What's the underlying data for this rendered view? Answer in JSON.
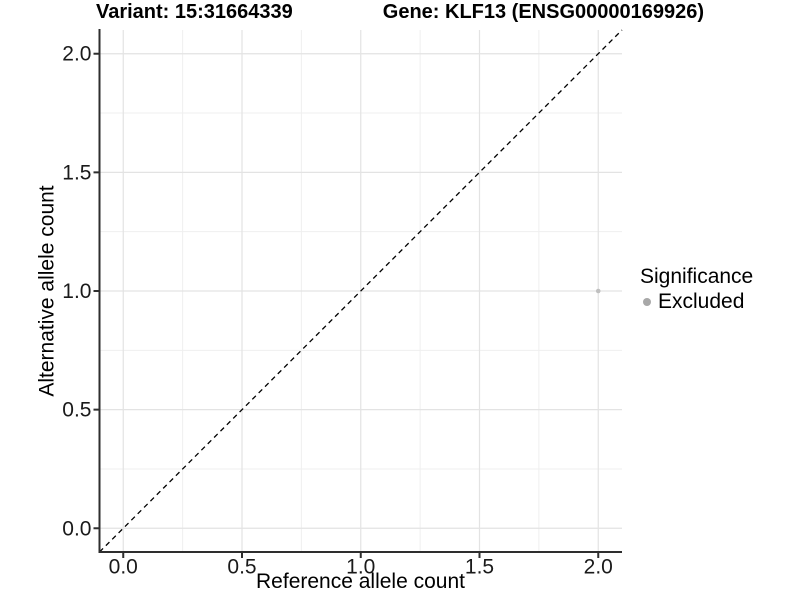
{
  "chart_data": {
    "type": "scatter",
    "titles": {
      "left": "Variant: 15:31664339",
      "right": "Gene: KLF13 (ENSG00000169926)"
    },
    "xlabel": "Reference allele count",
    "ylabel": "Alternative allele count",
    "xlim": [
      -0.1,
      2.1
    ],
    "ylim": [
      -0.1,
      2.1
    ],
    "x_ticks": {
      "values": [
        0,
        0.5,
        1,
        1.5,
        2
      ],
      "labels": [
        "0.0",
        "0.5",
        "1.0",
        "1.5",
        "2.0"
      ]
    },
    "y_ticks": {
      "values": [
        0,
        0.5,
        1,
        1.5,
        2
      ],
      "labels": [
        "0.0",
        "0.5",
        "1.0",
        "1.5",
        "2.0"
      ]
    },
    "minor_tick_values": [
      0.25,
      0.75,
      1.25,
      1.75
    ],
    "grid": {
      "major": true,
      "minor": true
    },
    "identity_line": {
      "slope": 1,
      "intercept": 0,
      "style": "dashed",
      "color": "#000000"
    },
    "series": [
      {
        "name": "Excluded",
        "marker": "circle",
        "marker_radius": 2.3,
        "color": "#c0c0c0",
        "points": [
          {
            "x": 2.0,
            "y": 1.0
          }
        ]
      }
    ],
    "legend": {
      "title": "Significance",
      "position": "right-middle",
      "items": [
        {
          "label": "Excluded",
          "color": "#a8a8a8"
        }
      ]
    }
  },
  "colors": {
    "background": "#ffffff",
    "grid_major": "#e3e3e3",
    "grid_minor": "#efefef",
    "axis_line": "#2e2e2e",
    "tick_text": "#1a1a1a",
    "title_text": "#000000"
  }
}
